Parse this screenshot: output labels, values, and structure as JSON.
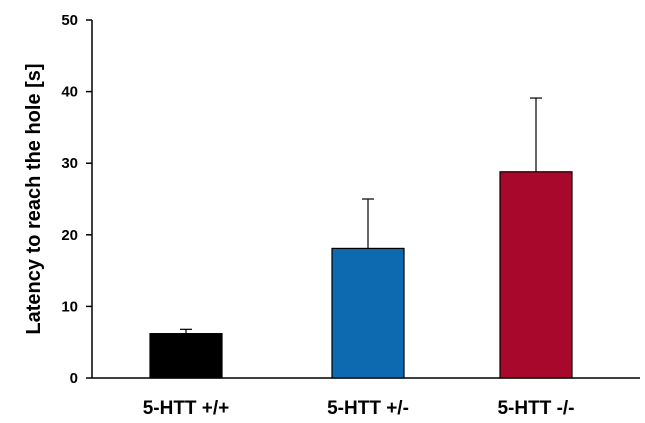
{
  "chart_data": {
    "type": "bar",
    "title": "",
    "xlabel": "",
    "ylabel": "Latency to reach the hole [s]",
    "ylim": [
      0,
      50
    ],
    "yticks": [
      0,
      10,
      20,
      30,
      40,
      50
    ],
    "grid": false,
    "categories": [
      "5-HTT +/+",
      "5-HTT +/-",
      "5-HTT -/-"
    ],
    "values": [
      6.2,
      18.1,
      28.8
    ],
    "error_upper": [
      0.6,
      6.9,
      10.3
    ],
    "colors": [
      "#000000",
      "#0d69b0",
      "#a8082c"
    ]
  }
}
